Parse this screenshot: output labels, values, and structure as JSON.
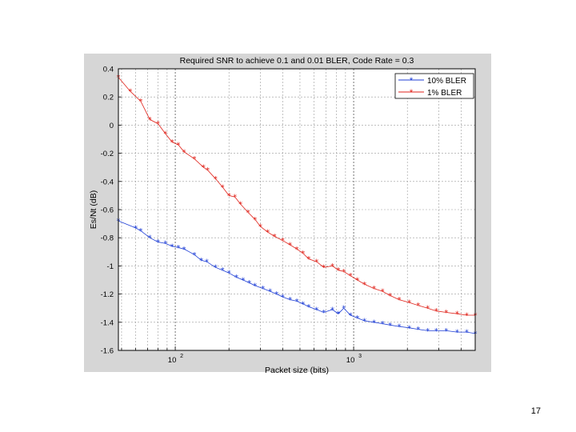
{
  "slide": {
    "page_number": "17"
  },
  "chart_data": {
    "type": "line",
    "title": "Required SNR to achieve 0.1 and 0.01 BLER, Code Rate = 0.3",
    "xlabel": "Packet size (bits)",
    "ylabel": "Es/Nt (dB)",
    "xscale": "log",
    "xlim": [
      48,
      4800
    ],
    "ylim": [
      -1.6,
      0.4
    ],
    "grid": true,
    "legend_position": "top-right",
    "xticks": [
      {
        "value": 100,
        "base": "10",
        "exp": "2"
      },
      {
        "value": 1000,
        "base": "10",
        "exp": "3"
      }
    ],
    "yticks": [
      "0.4",
      "0.2",
      "0",
      "-0.2",
      "-0.4",
      "-0.6",
      "-0.8",
      "-1",
      "-1.2",
      "-1.4",
      "-1.6"
    ],
    "series": [
      {
        "name": "10% BLER",
        "color": "#1f3fd6",
        "marker": "asterisk",
        "x": [
          48,
          60,
          64,
          72,
          80,
          88,
          96,
          104,
          112,
          128,
          140,
          150,
          168,
          184,
          200,
          220,
          240,
          260,
          280,
          310,
          340,
          370,
          400,
          440,
          480,
          520,
          560,
          620,
          680,
          760,
          820,
          880,
          960,
          1050,
          1150,
          1300,
          1450,
          1600,
          1800,
          2050,
          2300,
          2600,
          2900,
          3300,
          3800,
          4300,
          4800
        ],
        "y": [
          -0.68,
          -0.73,
          -0.75,
          -0.8,
          -0.83,
          -0.84,
          -0.86,
          -0.87,
          -0.88,
          -0.92,
          -0.96,
          -0.97,
          -1.01,
          -1.03,
          -1.05,
          -1.08,
          -1.1,
          -1.12,
          -1.14,
          -1.16,
          -1.18,
          -1.2,
          -1.22,
          -1.24,
          -1.25,
          -1.27,
          -1.29,
          -1.31,
          -1.33,
          -1.31,
          -1.34,
          -1.3,
          -1.35,
          -1.37,
          -1.39,
          -1.4,
          -1.41,
          -1.42,
          -1.43,
          -1.44,
          -1.45,
          -1.46,
          -1.46,
          -1.46,
          -1.47,
          -1.47,
          -1.48
        ]
      },
      {
        "name": "1% BLER",
        "color": "#e0231b",
        "marker": "asterisk",
        "x": [
          48,
          56,
          64,
          72,
          80,
          88,
          96,
          104,
          112,
          128,
          144,
          152,
          168,
          184,
          200,
          216,
          232,
          256,
          280,
          300,
          330,
          360,
          400,
          440,
          480,
          520,
          560,
          620,
          680,
          760,
          820,
          880,
          960,
          1050,
          1150,
          1300,
          1450,
          1600,
          1800,
          2050,
          2300,
          2600,
          2900,
          3300,
          3800,
          4300,
          4800
        ],
        "y": [
          0.34,
          0.24,
          0.17,
          0.04,
          0.01,
          -0.06,
          -0.12,
          -0.14,
          -0.19,
          -0.24,
          -0.3,
          -0.32,
          -0.38,
          -0.44,
          -0.5,
          -0.51,
          -0.56,
          -0.62,
          -0.67,
          -0.72,
          -0.76,
          -0.79,
          -0.82,
          -0.85,
          -0.88,
          -0.91,
          -0.95,
          -0.97,
          -1.01,
          -1.0,
          -1.03,
          -1.04,
          -1.07,
          -1.1,
          -1.13,
          -1.16,
          -1.18,
          -1.21,
          -1.24,
          -1.26,
          -1.28,
          -1.3,
          -1.32,
          -1.33,
          -1.34,
          -1.35,
          -1.35
        ]
      }
    ]
  }
}
